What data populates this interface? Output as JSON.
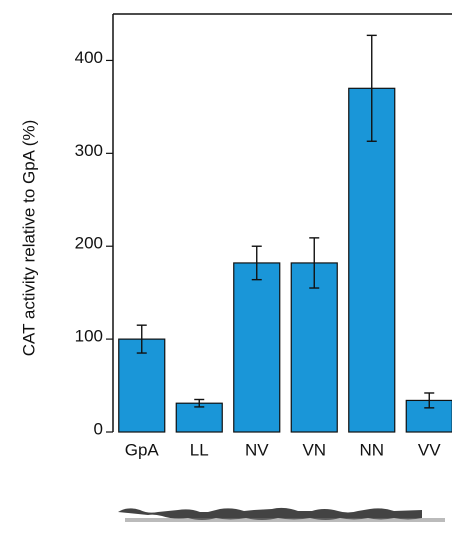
{
  "chart_data": {
    "type": "bar",
    "ylabel": "CAT activity relative to GpA (%)",
    "categories": [
      "GpA",
      "LL",
      "NV",
      "VN",
      "NN",
      "VV"
    ],
    "values": [
      100,
      31,
      182,
      182,
      370,
      34
    ],
    "errors": [
      15,
      4,
      18,
      27,
      57,
      8
    ],
    "color": "#1a96d8",
    "ylim": [
      0,
      450
    ],
    "yticks": [
      0,
      100,
      200,
      300,
      400
    ]
  }
}
